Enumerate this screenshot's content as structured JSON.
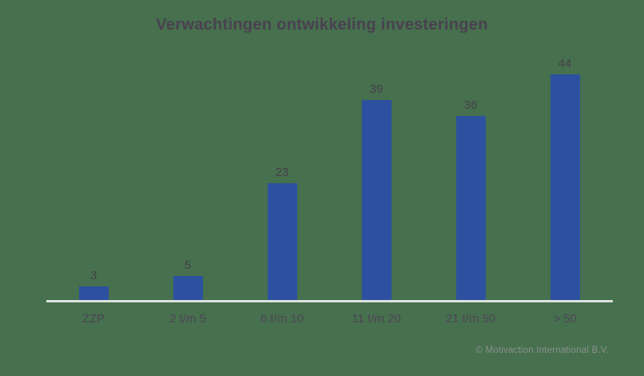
{
  "chart_data": {
    "type": "bar",
    "title": "Verwachtingen ontwikkeling investeringen",
    "categories": [
      "ZZP",
      "2 t/m 5",
      "6 t/m 10",
      "11 t/m 20",
      "21 t/m 50",
      "> 50"
    ],
    "values": [
      3,
      5,
      23,
      39,
      36,
      44
    ],
    "series": [
      {
        "name": "Verwachtingen ontwikkeling investeringen",
        "values": [
          3,
          5,
          23,
          39,
          36,
          44
        ]
      }
    ],
    "xlabel": "",
    "ylabel": "",
    "ylim": [
      0,
      48
    ],
    "grid": false,
    "legend_position": "none",
    "value_labels_shown": true
  },
  "footer": {
    "copyright": "© Motivaction International B.V."
  },
  "colors": {
    "background": "#46704E",
    "bar": "#2D51A0",
    "title_text": "#4A4150",
    "value_text": "#474149",
    "category_text": "#4E4657",
    "axis_line": "#DCE1DC",
    "copyright_text": "#8C918E"
  }
}
